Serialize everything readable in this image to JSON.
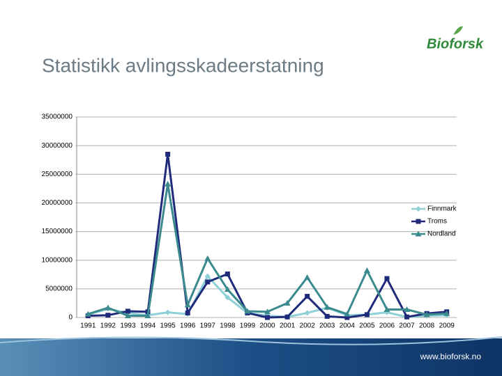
{
  "logo": "Bioforsk",
  "footer_url": "www.bioforsk.no",
  "chart_data": {
    "type": "line",
    "title": "Statistikk avlingsskadeerstatning",
    "categories": [
      "1991",
      "1992",
      "1993",
      "1994",
      "1995",
      "1996",
      "1997",
      "1998",
      "1999",
      "2000",
      "2001",
      "2002",
      "2003",
      "2004",
      "2005",
      "2006",
      "2007",
      "2008",
      "2009"
    ],
    "series": [
      {
        "name": "Finnmark",
        "color": "#8fd0d8",
        "marker": "diamond",
        "values": [
          500000,
          1500000,
          800000,
          400000,
          900000,
          600000,
          7200000,
          3500000,
          800000,
          300000,
          100000,
          800000,
          1700000,
          400000,
          500000,
          900000,
          100000,
          300000,
          400000
        ]
      },
      {
        "name": "Troms",
        "color": "#1f2a7a",
        "marker": "square",
        "values": [
          300000,
          400000,
          1100000,
          1000000,
          28500000,
          800000,
          6200000,
          7600000,
          800000,
          0,
          100000,
          3700000,
          200000,
          0,
          500000,
          6800000,
          100000,
          700000,
          1000000
        ]
      },
      {
        "name": "Nordland",
        "color": "#3a8a8e",
        "marker": "triangle",
        "values": [
          600000,
          1700000,
          300000,
          300000,
          23300000,
          2200000,
          10300000,
          4900000,
          1100000,
          1000000,
          2500000,
          7000000,
          1800000,
          600000,
          8200000,
          1400000,
          1400000,
          500000,
          700000
        ]
      }
    ],
    "ylim": [
      0,
      35000000
    ],
    "yticks": [
      0,
      5000000,
      10000000,
      15000000,
      20000000,
      25000000,
      30000000,
      35000000
    ],
    "grid": true,
    "legend": "right"
  }
}
